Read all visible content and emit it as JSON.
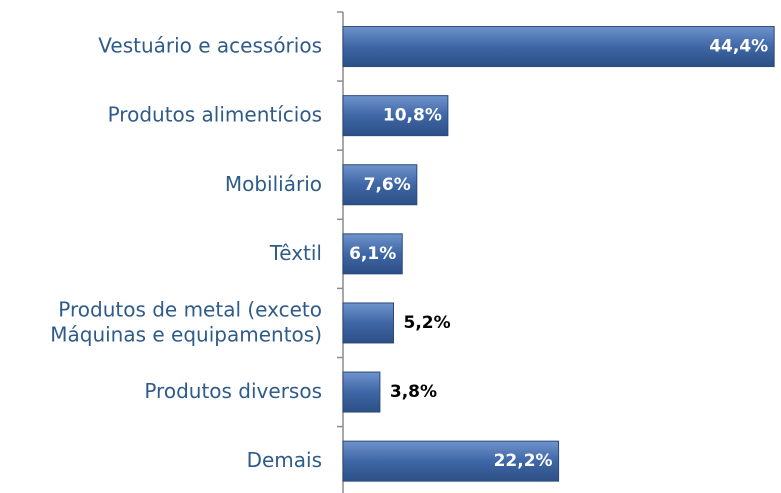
{
  "chart_data": {
    "type": "bar",
    "orientation": "horizontal",
    "categories": [
      "Vestuário e acessórios",
      "Produtos alimentícios",
      "Mobiliário",
      "Têxtil",
      "Produtos de metal (exceto\nMáquinas e equipamentos)",
      "Produtos diversos",
      "Demais"
    ],
    "values": [
      44.4,
      10.8,
      7.6,
      6.1,
      5.2,
      3.8,
      22.2
    ],
    "value_labels": [
      "44,4%",
      "10,8%",
      "7,6%",
      "6,1%",
      "5,2%",
      "3,8%",
      "22,2%"
    ],
    "color": "#3f67a6",
    "xlim": [
      0,
      45
    ]
  }
}
